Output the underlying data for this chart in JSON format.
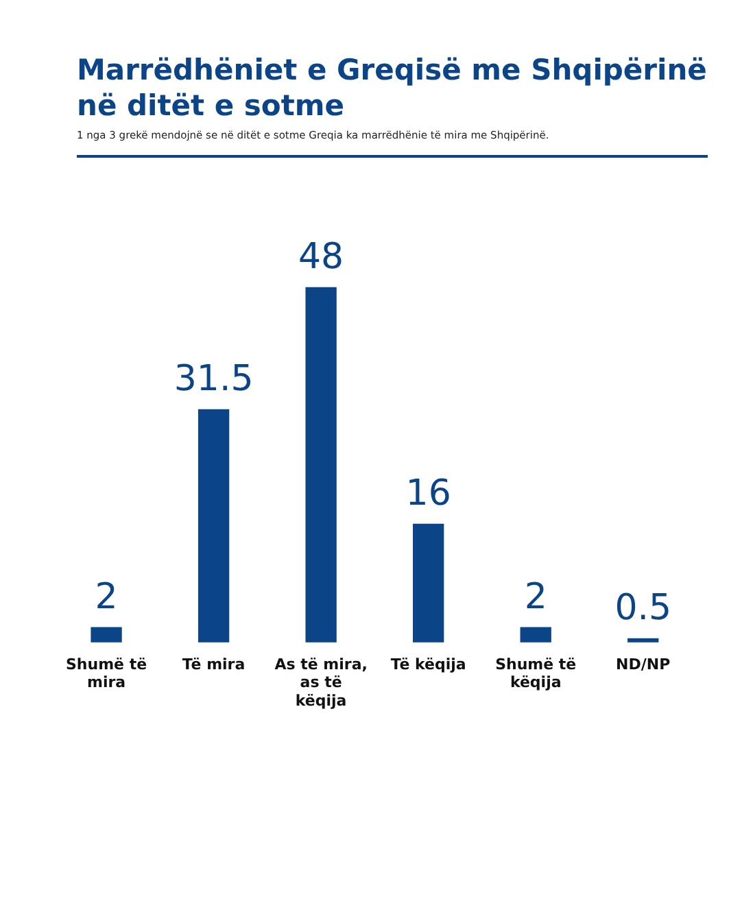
{
  "chart_data": {
    "type": "bar",
    "title": "Marrëdhëniet e Greqisë me Shqipërinë në ditët e sotme",
    "subtitle": "1 nga 3 grekë mendojnë se në ditët e sotme Greqia ka marrëdhënie të mira me Shqipërinë.",
    "categories": [
      "Shumë të mira",
      "Të mira",
      "As të mira, as të këqija",
      "Të këqija",
      "Shumë të këqija",
      "ND/NP"
    ],
    "values": [
      2,
      31.5,
      48,
      16,
      2,
      0.5
    ],
    "color": "#0b4588",
    "data_labels": true,
    "tick_labels": "x",
    "grid": false,
    "legend": false
  }
}
